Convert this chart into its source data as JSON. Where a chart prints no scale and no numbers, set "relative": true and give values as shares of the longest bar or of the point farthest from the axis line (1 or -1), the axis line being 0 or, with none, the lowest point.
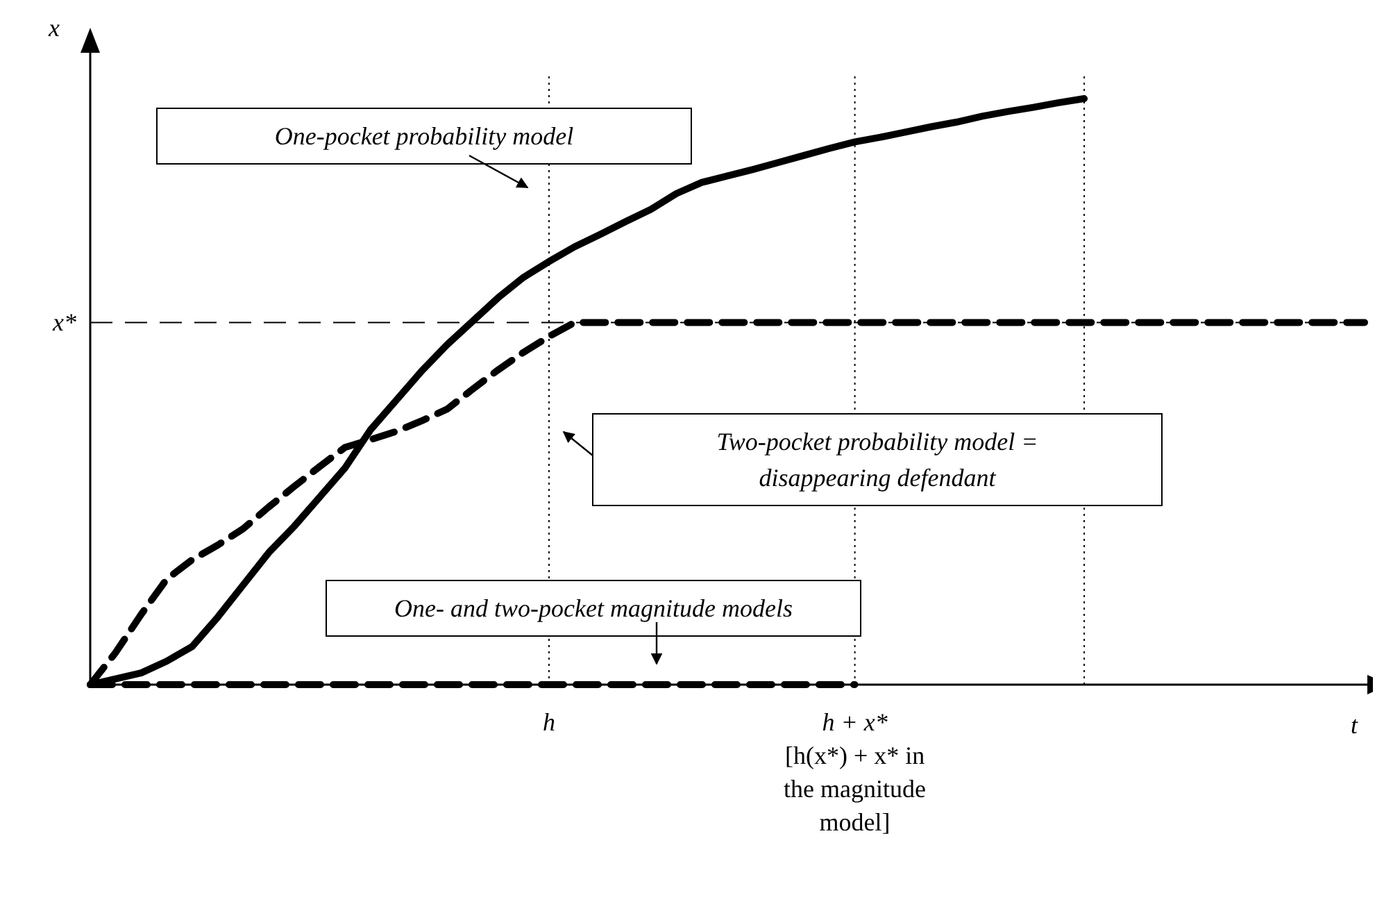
{
  "chart_data": {
    "type": "line",
    "relative": true,
    "xlabel": "t",
    "ylabel": "x",
    "categories": [
      null,
      null,
      null,
      null,
      null,
      null,
      null,
      null,
      null,
      null,
      null,
      null,
      null,
      null,
      null,
      null,
      null,
      null,
      "h",
      null,
      null,
      null,
      null,
      null,
      null,
      null,
      null,
      null,
      null,
      null,
      "h + x*",
      null,
      null,
      null,
      null,
      null,
      null,
      null,
      null,
      null,
      null,
      null,
      null,
      null,
      null,
      null,
      null,
      null,
      null,
      null,
      null
    ],
    "series": [
      {
        "color": "#000000",
        "line_style": "solid",
        "values": [
          0,
          0.01,
          0.02,
          0.04,
          0.065,
          0.115,
          0.17,
          0.225,
          0.27,
          0.32,
          0.37,
          0.435,
          0.485,
          0.535,
          0.58,
          0.62,
          0.66,
          0.695,
          0.722,
          0.747,
          0.768,
          0.79,
          0.811,
          0.838,
          0.857,
          0.868,
          0.879,
          0.891,
          0.903,
          0.915,
          0.926,
          0.934,
          0.943,
          0.952,
          0.96,
          0.97,
          0.978,
          0.985,
          0.993,
          1,
          null,
          null,
          null,
          null,
          null,
          null,
          null,
          null,
          null,
          null,
          null
        ]
      },
      {
        "color": "#000000",
        "line_style": "dashed",
        "values": [
          0,
          0.055,
          0.12,
          0.18,
          0.213,
          0.238,
          0.266,
          0.303,
          0.338,
          0.372,
          0.405,
          0.418,
          0.432,
          0.45,
          0.47,
          0.504,
          0.537,
          0.567,
          0.594,
          0.618,
          0.618,
          0.618,
          0.618,
          0.618,
          0.618,
          0.618,
          0.618,
          0.618,
          0.618,
          0.618,
          0.618,
          0.618,
          0.618,
          0.618,
          0.618,
          0.618,
          0.618,
          0.618,
          0.618,
          0.618,
          0.618,
          0.618,
          0.618,
          0.618,
          0.618,
          0.618,
          0.618,
          0.618,
          0.618,
          0.618,
          0.618
        ]
      },
      {
        "color": "#000000",
        "line_style": "dashed",
        "values": [
          0,
          0,
          0,
          0,
          0,
          0,
          0,
          0,
          0,
          0,
          0,
          0,
          0,
          0,
          0,
          0,
          0,
          0,
          0,
          0,
          0,
          0,
          0,
          0,
          0,
          0,
          0,
          0,
          0,
          0,
          0,
          null,
          null,
          null,
          null,
          null,
          null,
          null,
          null,
          null,
          null,
          null,
          null,
          null,
          null,
          null,
          null,
          null,
          null,
          null,
          null
        ]
      }
    ],
    "ref_lines": [
      {
        "axis": "x",
        "value": "h",
        "label": null,
        "line_style": "dotted"
      },
      {
        "axis": "x",
        "value": "h + x*",
        "label": null,
        "line_style": "dotted"
      },
      {
        "axis": "y",
        "value": 0.618,
        "label": "x*",
        "line_style": "dashed"
      }
    ],
    "annotations": [
      "One-pocket probability model",
      "Two-pocket probability model = disappearing defendant",
      "One- and two-pocket magnitude models",
      "[h(x*) + x* in the magnitude model]"
    ]
  }
}
